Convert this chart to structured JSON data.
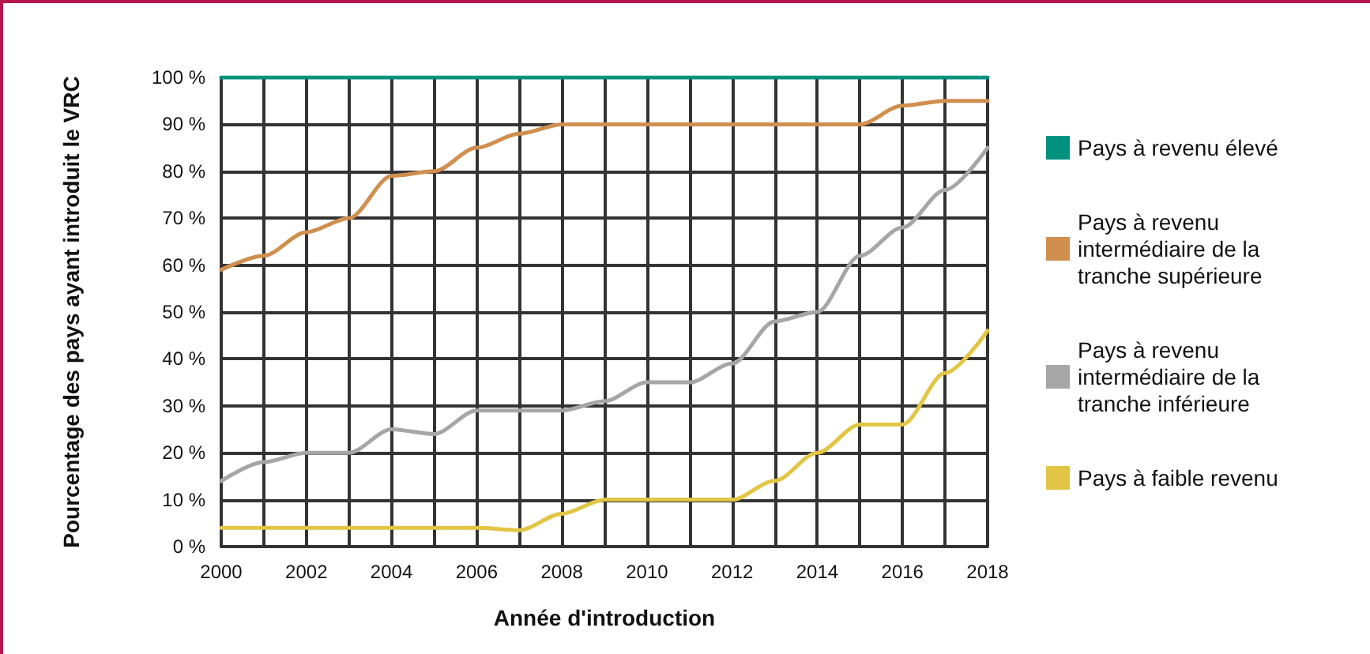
{
  "chart_data": {
    "type": "line",
    "xlabel": "Année d'introduction",
    "ylabel": "Pourcentage des pays ayant introduit le VRC",
    "x": [
      2000,
      2001,
      2002,
      2003,
      2004,
      2005,
      2006,
      2007,
      2008,
      2009,
      2010,
      2011,
      2012,
      2013,
      2014,
      2015,
      2016,
      2017,
      2018
    ],
    "series": [
      {
        "name": "Pays à revenu élevé",
        "color": "#00927f",
        "values": [
          100,
          100,
          100,
          100,
          100,
          100,
          100,
          100,
          100,
          100,
          100,
          100,
          100,
          100,
          100,
          100,
          100,
          100,
          100
        ]
      },
      {
        "name": "Pays à revenu intermédiaire de la tranche supérieure",
        "color": "#d08f4e",
        "values": [
          59,
          62,
          67,
          70,
          79,
          80,
          85,
          88,
          90,
          90,
          90,
          90,
          90,
          90,
          90,
          90,
          94,
          95,
          95
        ]
      },
      {
        "name": "Pays à revenu intermédiaire de la tranche inférieure",
        "color": "#a6a6a6",
        "values": [
          14,
          18,
          20,
          20,
          25,
          24,
          29,
          29,
          29,
          31,
          35,
          35,
          39,
          48,
          50,
          62,
          68,
          76,
          85
        ]
      },
      {
        "name": "Pays à faible revenu",
        "color": "#e2c545",
        "values": [
          4,
          4,
          4,
          4,
          4,
          4,
          4,
          3.5,
          7,
          10,
          10,
          10,
          10,
          14,
          20,
          26,
          26,
          37,
          46
        ]
      }
    ],
    "xlim": [
      2000,
      2018
    ],
    "xticks": [
      2000,
      {
        "value": 2001,
        "label": null
      },
      2002,
      {
        "value": 2003,
        "label": null
      },
      2004,
      {
        "value": 2005,
        "label": null
      },
      2006,
      {
        "value": 2007,
        "label": null
      },
      2008,
      {
        "value": 2009,
        "label": null
      },
      2010,
      {
        "value": 2011,
        "label": null
      },
      2012,
      {
        "value": 2013,
        "label": null
      },
      2014,
      {
        "value": 2015,
        "label": null
      },
      2016,
      {
        "value": 2017,
        "label": null
      },
      2018
    ],
    "ylim": [
      0,
      100
    ],
    "yticks": [
      {
        "value": 0,
        "label": "0 %"
      },
      {
        "value": 10,
        "label": "10 %"
      },
      {
        "value": 20,
        "label": "20 %"
      },
      {
        "value": 30,
        "label": "30 %"
      },
      {
        "value": 40,
        "label": "40 %"
      },
      {
        "value": 50,
        "label": "50 %"
      },
      {
        "value": 60,
        "label": "60 %"
      },
      {
        "value": 70,
        "label": "70 %"
      },
      {
        "value": 80,
        "label": "80 %"
      },
      {
        "value": 90,
        "label": "90 %"
      },
      {
        "value": 100,
        "label": "100 %"
      }
    ],
    "grid": true,
    "legend": "right",
    "line_style": "solid"
  }
}
